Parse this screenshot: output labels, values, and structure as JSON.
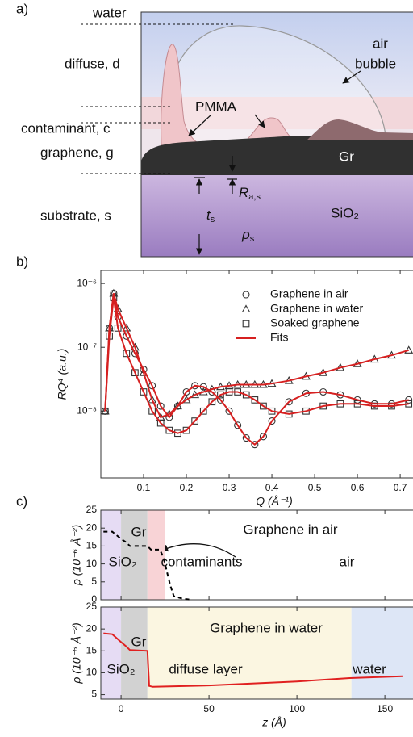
{
  "diagram": {
    "label": "a)",
    "layers": [
      "water",
      "diffuse, d",
      "contaminant, c",
      "graphene, g",
      "substrate, s"
    ],
    "annotations": {
      "air": "air",
      "bubble": "bubble",
      "pmma": "PMMA",
      "gr": "Gr",
      "sio2": "SiO₂",
      "roughness": {
        "symbol": "R",
        "sub": "a,s"
      },
      "thickness": {
        "symbol": "t",
        "sub": "s"
      },
      "density": {
        "symbol": "ρ",
        "sub": "s"
      }
    }
  },
  "chart_data": [
    {
      "type": "scatter",
      "label": "b)",
      "xlabel": "Q (Å⁻¹)",
      "ylabel": "RQ⁴ (a.u.)",
      "ylog": true,
      "legend": "upper right",
      "xlim": [
        0,
        0.73
      ],
      "ylim": [
        9e-10,
        1.6e-06
      ],
      "xticks": [
        0.1,
        0.2,
        0.3,
        0.4,
        0.5,
        0.6,
        0.7
      ],
      "yticks": [
        {
          "value": 1e-08,
          "label": "10⁻⁸"
        },
        {
          "value": 1e-07,
          "label": "10⁻⁷"
        },
        {
          "value": 1e-06,
          "label": "10⁻⁶"
        }
      ],
      "x": [
        0.01,
        0.02,
        0.03,
        0.04,
        0.06,
        0.08,
        0.1,
        0.12,
        0.14,
        0.16,
        0.18,
        0.2,
        0.22,
        0.24,
        0.26,
        0.28,
        0.3,
        0.32,
        0.34,
        0.36,
        0.38,
        0.4,
        0.44,
        0.48,
        0.52,
        0.56,
        0.6,
        0.64,
        0.68,
        0.72
      ],
      "series": [
        {
          "name": "Graphene in air",
          "marker": "circle",
          "color": "#333333",
          "values": [
            1e-08,
            2e-07,
            7e-07,
            3e-07,
            1.5e-07,
            8e-08,
            4.5e-08,
            2.5e-08,
            1.2e-08,
            8e-09,
            1.2e-08,
            2e-08,
            2.5e-08,
            2.4e-08,
            2e-08,
            1.5e-08,
            1e-08,
            6e-09,
            3.8e-09,
            3e-09,
            4e-09,
            7e-09,
            1.4e-08,
            1.9e-08,
            2e-08,
            1.8e-08,
            1.5e-08,
            1.3e-08,
            1.3e-08,
            1.5e-08
          ]
        },
        {
          "name": "Graphene in water",
          "marker": "triangle",
          "color": "#333333",
          "values": [
            1e-08,
            2e-07,
            7e-07,
            4e-07,
            2e-07,
            1e-07,
            4e-08,
            1.5e-08,
            8e-09,
            9e-09,
            1.2e-08,
            1.5e-08,
            1.8e-08,
            2e-08,
            2.2e-08,
            2.4e-08,
            2.5e-08,
            2.6e-08,
            2.6e-08,
            2.6e-08,
            2.6e-08,
            2.7e-08,
            3e-08,
            3.5e-08,
            4e-08,
            4.8e-08,
            5.5e-08,
            6.5e-08,
            7.5e-08,
            9e-08
          ]
        },
        {
          "name": "Soaked graphene",
          "marker": "square",
          "color": "#333333",
          "values": [
            1e-08,
            1.5e-07,
            6e-07,
            2e-07,
            8e-08,
            4e-08,
            2e-08,
            1e-08,
            6.5e-09,
            5e-09,
            4.5e-09,
            5e-09,
            7e-09,
            1e-08,
            1.4e-08,
            1.8e-08,
            2e-08,
            2e-08,
            1.8e-08,
            1.5e-08,
            1.2e-08,
            1e-08,
            9e-09,
            1e-08,
            1.2e-08,
            1.3e-08,
            1.3e-08,
            1.2e-08,
            1.2e-08,
            1.3e-08
          ]
        },
        {
          "name": "Fits",
          "marker": "line",
          "color": "#d62020",
          "values": [
            [
              1e-08,
              2e-07,
              7e-07,
              3e-07,
              1.5e-07,
              8e-08,
              4.5e-08,
              2.5e-08,
              1.2e-08,
              8e-09,
              1.2e-08,
              2e-08,
              2.5e-08,
              2.4e-08,
              2e-08,
              1.5e-08,
              1e-08,
              6e-09,
              3.8e-09,
              3e-09,
              4e-09,
              7e-09,
              1.4e-08,
              1.9e-08,
              2e-08,
              1.8e-08,
              1.5e-08,
              1.3e-08,
              1.3e-08,
              1.5e-08
            ],
            [
              1e-08,
              2e-07,
              7e-07,
              4e-07,
              2e-07,
              1e-07,
              4e-08,
              1.5e-08,
              8e-09,
              9e-09,
              1.2e-08,
              1.5e-08,
              1.8e-08,
              2e-08,
              2.2e-08,
              2.4e-08,
              2.5e-08,
              2.6e-08,
              2.6e-08,
              2.6e-08,
              2.6e-08,
              2.7e-08,
              3e-08,
              3.5e-08,
              4e-08,
              4.8e-08,
              5.5e-08,
              6.5e-08,
              7.5e-08,
              9e-08
            ],
            [
              1e-08,
              1.5e-07,
              6e-07,
              2e-07,
              8e-08,
              4e-08,
              2e-08,
              1e-08,
              6.5e-09,
              5e-09,
              4.5e-09,
              5e-09,
              7e-09,
              1e-08,
              1.4e-08,
              1.8e-08,
              2e-08,
              2e-08,
              1.8e-08,
              1.5e-08,
              1.2e-08,
              1e-08,
              9e-09,
              1e-08,
              1.2e-08,
              1.3e-08,
              1.3e-08,
              1.2e-08,
              1.2e-08,
              1.3e-08
            ]
          ]
        }
      ]
    },
    {
      "type": "line",
      "label": "c)",
      "title": "Graphene in air",
      "ylabel": "ρ (10⁻⁶ Å⁻²)",
      "xlim": [
        -11.5,
        166
      ],
      "ylim": [
        0,
        25
      ],
      "xticks": [
        0,
        50,
        100,
        150
      ],
      "xticklabels": false,
      "yticks": [
        0,
        5,
        10,
        15,
        20,
        25
      ],
      "regions": [
        {
          "x0": -11.5,
          "x1": 0,
          "color": "#e6dcf4"
        },
        {
          "x0": 0,
          "x1": 15,
          "color": "#d2d2d2"
        },
        {
          "x0": 15,
          "x1": 25,
          "color": "#f8d3d6"
        }
      ],
      "annotations": [
        "Gr",
        "SiO₂",
        "contaminants",
        "air"
      ],
      "x": [
        -10,
        -5,
        0,
        3,
        5,
        15,
        17,
        22,
        24,
        26,
        28,
        30,
        35,
        40
      ],
      "series": [
        {
          "color": "#000000",
          "dash": true,
          "values": [
            19,
            19,
            17,
            16,
            15,
            15,
            14,
            14,
            12,
            8,
            4,
            1,
            0.3,
            0
          ]
        }
      ]
    },
    {
      "type": "line",
      "title": "Graphene in water",
      "xlabel": "z (Å)",
      "ylabel": "ρ (10⁻⁶ Å⁻²)",
      "xlim": [
        -11.5,
        166
      ],
      "ylim": [
        4,
        25
      ],
      "xticks": [
        0,
        50,
        100,
        150
      ],
      "yticks": [
        5,
        10,
        15,
        20,
        25
      ],
      "regions": [
        {
          "x0": -11.5,
          "x1": 0,
          "color": "#e6dcf4"
        },
        {
          "x0": 0,
          "x1": 15,
          "color": "#d2d2d2"
        },
        {
          "x0": 15,
          "x1": 131,
          "color": "#fbf6e1"
        },
        {
          "x0": 131,
          "x1": 166,
          "color": "#dde6f6"
        }
      ],
      "annotations": [
        "Gr",
        "SiO₂",
        "diffuse layer",
        "water"
      ],
      "x": [
        -10,
        -5,
        0,
        3,
        5,
        15,
        16,
        18,
        50,
        100,
        130,
        160
      ],
      "series": [
        {
          "color": "#e02020",
          "dash": false,
          "values": [
            19,
            18.8,
            17,
            16,
            15.2,
            15,
            7,
            6.8,
            7.1,
            8,
            8.8,
            9.2
          ]
        }
      ]
    }
  ]
}
